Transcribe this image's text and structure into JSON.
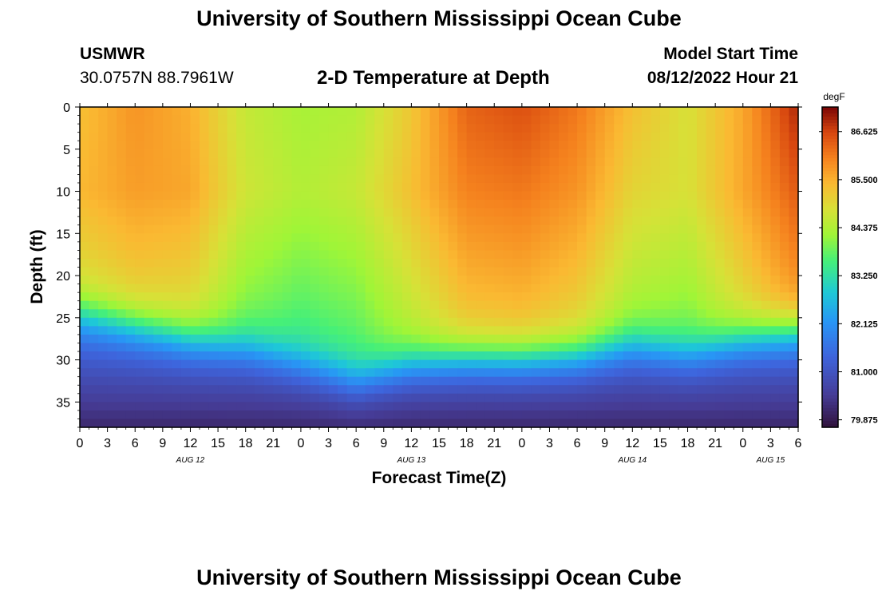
{
  "header": {
    "title": "University of Southern Mississippi Ocean Cube",
    "station_name": "USMWR",
    "station_coords": "30.0757N  88.7961W",
    "plot_title": "2-D Temperature at Depth",
    "model_start_label": "Model Start Time",
    "model_start_value": "08/12/2022 Hour 21"
  },
  "footer": {
    "title": "University of Southern Mississippi Ocean Cube"
  },
  "chart_data": {
    "type": "heatmap",
    "title": "2-D Temperature at Depth",
    "xlabel": "Forecast Time(Z)",
    "ylabel": "Depth (ft)",
    "x_range_hours": [
      0,
      78
    ],
    "y_range_ft": [
      0,
      38
    ],
    "x_ticks": [
      "0",
      "3",
      "6",
      "9",
      "12",
      "15",
      "18",
      "21",
      "0",
      "3",
      "6",
      "9",
      "12",
      "15",
      "18",
      "21",
      "0",
      "3",
      "6",
      "9",
      "12",
      "15",
      "18",
      "21",
      "0",
      "3",
      "6"
    ],
    "y_ticks": [
      0,
      5,
      10,
      15,
      20,
      25,
      30,
      35
    ],
    "date_labels": [
      {
        "label": "AUG 12",
        "hour": 12
      },
      {
        "label": "AUG 13",
        "hour": 36
      },
      {
        "label": "AUG 14",
        "hour": 60
      },
      {
        "label": "AUG 15",
        "hour": 75
      }
    ],
    "colorbar": {
      "unit": "degF",
      "min": 79.7,
      "max": 87.2,
      "ticks": [
        86.625,
        85.5,
        84.375,
        83.25,
        82.125,
        81.0,
        79.875
      ],
      "tick_labels": [
        "86.625",
        "85.500",
        "84.375",
        "83.250",
        "82.125",
        "81.000",
        "79.875"
      ]
    },
    "surface_temp_by_hour": [
      [
        0,
        85.3
      ],
      [
        6,
        85.8
      ],
      [
        12,
        85.5
      ],
      [
        18,
        84.6
      ],
      [
        24,
        84.3
      ],
      [
        30,
        84.4
      ],
      [
        36,
        85.2
      ],
      [
        42,
        86.3
      ],
      [
        48,
        86.5
      ],
      [
        54,
        86.1
      ],
      [
        60,
        85.3
      ],
      [
        66,
        84.8
      ],
      [
        72,
        85.6
      ],
      [
        78,
        86.9
      ]
    ],
    "mid_temp_10ft_by_hour": [
      [
        0,
        85.4
      ],
      [
        6,
        85.7
      ],
      [
        12,
        85.6
      ],
      [
        18,
        84.7
      ],
      [
        24,
        84.4
      ],
      [
        30,
        84.6
      ],
      [
        36,
        85.3
      ],
      [
        42,
        86.0
      ],
      [
        48,
        86.1
      ],
      [
        54,
        85.8
      ],
      [
        60,
        85.0
      ],
      [
        66,
        84.8
      ],
      [
        72,
        85.6
      ],
      [
        78,
        86.4
      ]
    ],
    "thermocline_depth_ft_by_hour": [
      [
        0,
        24.5
      ],
      [
        6,
        26.0
      ],
      [
        12,
        27.5
      ],
      [
        18,
        28.5
      ],
      [
        24,
        30.5
      ],
      [
        30,
        32.5
      ],
      [
        36,
        30.5
      ],
      [
        42,
        29.8
      ],
      [
        48,
        29.8
      ],
      [
        54,
        29.5
      ],
      [
        60,
        28.2
      ],
      [
        66,
        29.2
      ],
      [
        72,
        27.5
      ],
      [
        78,
        26.5
      ]
    ],
    "bottom_temp": 80.1
  }
}
